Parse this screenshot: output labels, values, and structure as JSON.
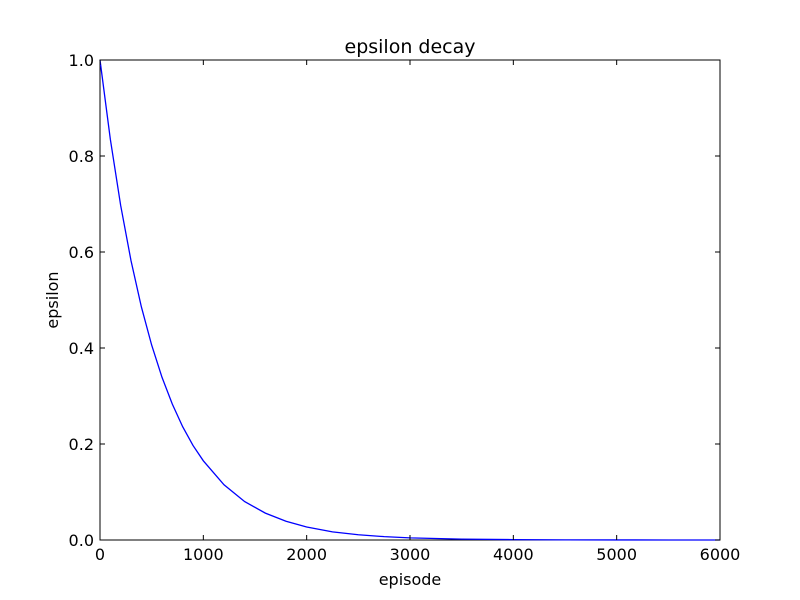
{
  "chart_data": {
    "type": "line",
    "title": "epsilon decay",
    "xlabel": "episode",
    "ylabel": "epsilon",
    "xlim": [
      0,
      6000
    ],
    "ylim": [
      0.0,
      1.0
    ],
    "xticks": [
      0,
      1000,
      2000,
      3000,
      4000,
      5000,
      6000
    ],
    "yticks": [
      0.0,
      0.2,
      0.4,
      0.6,
      0.8,
      1.0
    ],
    "ytick_labels": [
      "0.0",
      "0.2",
      "0.4",
      "0.6",
      "0.8",
      "1.0"
    ],
    "grid": false,
    "series": [
      {
        "color": "#0000ff",
        "x": [
          0,
          100,
          200,
          300,
          400,
          500,
          600,
          700,
          800,
          900,
          1000,
          1200,
          1400,
          1600,
          1800,
          2000,
          2250,
          2500,
          2750,
          3000,
          3500,
          4000,
          4500,
          5000,
          5500,
          6000
        ],
        "y": [
          1.0,
          0.835,
          0.697,
          0.582,
          0.486,
          0.406,
          0.339,
          0.283,
          0.236,
          0.197,
          0.165,
          0.115,
          0.08,
          0.056,
          0.039,
          0.027,
          0.017,
          0.011,
          0.007,
          0.0045,
          0.0019,
          0.0008,
          0.0003,
          0.0001,
          5e-05,
          2e-05
        ]
      }
    ]
  }
}
